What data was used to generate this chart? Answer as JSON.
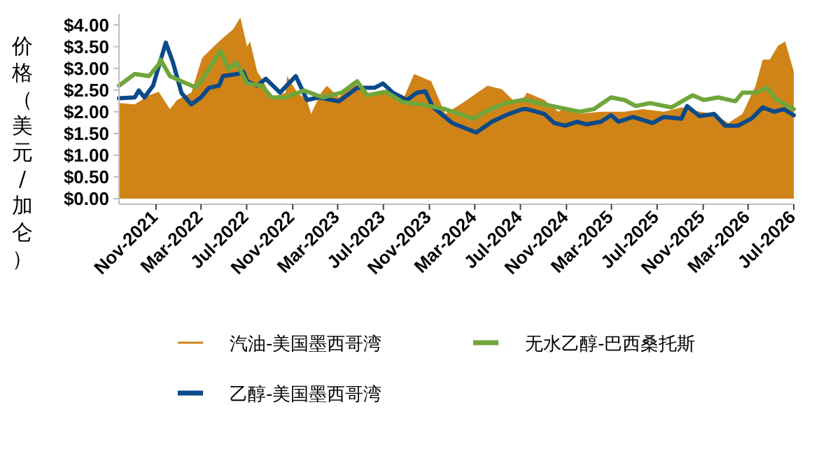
{
  "chart_data": {
    "type": "area",
    "ylabel": "价格（美元/加仑）",
    "legend": "bottom",
    "tick_labels": true,
    "xlim": [
      "2021-07-25",
      "2026-07"
    ],
    "ylim": [
      0,
      4.25
    ],
    "xticks": [
      {
        "value": "2021-11",
        "label": "Nov-2021"
      },
      {
        "value": "2022-03",
        "label": "Mar-2022"
      },
      {
        "value": "2022-07",
        "label": "Jul-2022"
      },
      {
        "value": "2022-11",
        "label": "Nov-2022"
      },
      {
        "value": "2023-03",
        "label": "Mar-2023"
      },
      {
        "value": "2023-07",
        "label": "Jul-2023"
      },
      {
        "value": "2023-11",
        "label": "Nov-2023"
      },
      {
        "value": "2024-03",
        "label": "Mar-2024"
      },
      {
        "value": "2024-07",
        "label": "Jul-2024"
      },
      {
        "value": "2024-11",
        "label": "Nov-2024"
      },
      {
        "value": "2025-03",
        "label": "Mar-2025"
      },
      {
        "value": "2025-07",
        "label": "Jul-2025"
      },
      {
        "value": "2025-11",
        "label": "Nov-2025"
      },
      {
        "value": "2026-03",
        "label": "Mar-2026"
      },
      {
        "value": "2026-07",
        "label": "Jul-2026"
      }
    ],
    "yticks": [
      {
        "value": 0,
        "label": "$0.00"
      },
      {
        "value": 0.5,
        "label": "$0.50"
      },
      {
        "value": 1,
        "label": "$1.00"
      },
      {
        "value": 1.5,
        "label": "$1.50"
      },
      {
        "value": 2,
        "label": "$2.00"
      },
      {
        "value": 2.5,
        "label": "$2.50"
      },
      {
        "value": 3,
        "label": "$3.00"
      },
      {
        "value": 3.5,
        "label": "$3.50"
      },
      {
        "value": 4,
        "label": "$4.00"
      }
    ],
    "series": [
      {
        "name": "汽油-美国墨西哥湾",
        "color": "#d08418",
        "x": [
          "2021-07-25",
          "2021-09-05",
          "2021-10-13",
          "2021-11-08",
          "2021-12-08",
          "2021-12-27",
          "2022-02-03",
          "2022-03-04",
          "2022-04-18",
          "2022-05-26",
          "2022-06-14",
          "2022-07-02",
          "2022-07-10",
          "2022-07-29",
          "2022-08-10",
          "2022-09-06",
          "2022-10-13",
          "2022-10-17",
          "2022-11-13",
          "2022-12-09",
          "2022-12-20",
          "2023-01-16",
          "2023-01-31",
          "2023-03-04",
          "2023-04-11",
          "2023-05-19",
          "2023-07-07",
          "2023-08-22",
          "2023-09-21",
          "2023-11-06",
          "2023-12-13",
          "2024-02-01",
          "2024-02-27",
          "2024-04-04",
          "2024-05-12",
          "2024-06-11",
          "2024-07-11",
          "2024-07-18",
          "2024-09-03",
          "2024-10-10",
          "2024-10-29",
          "2024-12-06",
          "2025-02-01",
          "2025-03-09",
          "2025-04-05",
          "2025-05-24",
          "2025-07-19",
          "2025-09-04",
          "2025-10-22",
          "2025-11-30",
          "2026-01-07",
          "2026-02-14",
          "2026-03-21",
          "2026-04-09",
          "2026-04-28",
          "2026-05-20",
          "2026-06-08",
          "2026-07-01"
        ],
        "values": [
          2.2,
          2.17,
          2.38,
          2.46,
          2.06,
          2.27,
          2.44,
          3.24,
          3.62,
          3.9,
          4.17,
          3.5,
          3.62,
          2.92,
          2.76,
          2.33,
          2.44,
          2.82,
          2.44,
          2.27,
          1.95,
          2.44,
          2.6,
          2.33,
          2.7,
          2.38,
          2.49,
          2.27,
          2.87,
          2.7,
          1.95,
          2.22,
          2.38,
          2.6,
          2.52,
          2.27,
          2.33,
          2.44,
          2.27,
          2.0,
          2.1,
          1.95,
          2.0,
          2.0,
          2.0,
          2.06,
          2.0,
          2.1,
          2.0,
          1.95,
          1.74,
          1.95,
          2.6,
          3.2,
          3.2,
          3.52,
          3.62,
          2.92
        ]
      },
      {
        "name": "乙醇-美国墨西哥湾",
        "type": "line",
        "color": "#0b4a8a",
        "x": [
          "2021-07-25",
          "2021-09-05",
          "2021-09-16",
          "2021-10-01",
          "2021-10-24",
          "2021-11-27",
          "2021-12-16",
          "2022-01-08",
          "2022-02-03",
          "2022-03-01",
          "2022-03-22",
          "2022-04-18",
          "2022-04-29",
          "2022-06-07",
          "2022-06-22",
          "2022-07-02",
          "2022-07-29",
          "2022-08-21",
          "2022-09-28",
          "2022-11-09",
          "2022-12-09",
          "2023-01-09",
          "2023-03-04",
          "2023-04-22",
          "2023-06-07",
          "2023-06-30",
          "2023-07-26",
          "2023-09-02",
          "2023-09-29",
          "2023-10-21",
          "2023-11-10",
          "2024-01-01",
          "2024-03-05",
          "2024-04-16",
          "2024-05-31",
          "2024-07-07",
          "2024-07-18",
          "2024-09-03",
          "2024-09-29",
          "2024-10-29",
          "2024-11-29",
          "2024-12-25",
          "2025-02-01",
          "2025-02-28",
          "2025-03-20",
          "2025-04-27",
          "2025-06-19",
          "2025-07-19",
          "2025-09-04",
          "2025-09-19",
          "2025-10-22",
          "2025-11-30",
          "2025-12-30",
          "2026-02-02",
          "2026-03-10",
          "2026-04-09",
          "2026-05-09",
          "2026-06-04",
          "2026-07-01"
        ],
        "values": [
          2.31,
          2.33,
          2.49,
          2.33,
          2.6,
          3.59,
          3.14,
          2.43,
          2.17,
          2.33,
          2.55,
          2.6,
          2.82,
          2.87,
          2.92,
          2.7,
          2.6,
          2.76,
          2.44,
          2.82,
          2.27,
          2.33,
          2.24,
          2.55,
          2.55,
          2.65,
          2.44,
          2.27,
          2.44,
          2.47,
          2.11,
          1.74,
          1.52,
          1.77,
          1.95,
          2.06,
          2.06,
          1.95,
          1.74,
          1.68,
          1.77,
          1.71,
          1.77,
          1.92,
          1.77,
          1.88,
          1.74,
          1.88,
          1.84,
          2.13,
          1.9,
          1.95,
          1.68,
          1.68,
          1.84,
          2.1,
          2.0,
          2.06,
          1.92
        ]
      },
      {
        "name": "无水乙醇-巴西桑托斯",
        "type": "line",
        "color": "#6fa63a",
        "x": [
          "2021-07-25",
          "2021-09-05",
          "2021-10-13",
          "2021-11-08",
          "2021-11-13",
          "2021-12-08",
          "2022-01-08",
          "2022-02-15",
          "2022-03-11",
          "2022-04-07",
          "2022-04-22",
          "2022-05-14",
          "2022-06-03",
          "2022-07-02",
          "2022-08-10",
          "2022-09-06",
          "2022-10-13",
          "2022-12-01",
          "2023-01-20",
          "2023-03-12",
          "2023-04-22",
          "2023-05-19",
          "2023-07-07",
          "2023-08-22",
          "2023-10-10",
          "2023-12-13",
          "2024-01-20",
          "2024-02-27",
          "2024-04-04",
          "2024-05-23",
          "2024-07-07",
          "2024-07-18",
          "2024-09-03",
          "2024-10-10",
          "2024-12-06",
          "2025-01-13",
          "2025-02-28",
          "2025-04-05",
          "2025-05-05",
          "2025-06-12",
          "2025-08-08",
          "2025-10-04",
          "2025-11-03",
          "2025-12-11",
          "2026-01-26",
          "2026-02-14",
          "2026-03-21",
          "2026-04-20",
          "2026-05-17",
          "2026-07-01"
        ],
        "values": [
          2.6,
          2.87,
          2.82,
          3.09,
          3.2,
          2.82,
          2.7,
          2.56,
          2.82,
          3.2,
          3.4,
          2.98,
          3.14,
          2.65,
          2.6,
          2.33,
          2.33,
          2.49,
          2.33,
          2.44,
          2.7,
          2.38,
          2.46,
          2.22,
          2.17,
          2.06,
          1.95,
          1.84,
          2.03,
          2.2,
          2.27,
          2.27,
          2.17,
          2.1,
          2.0,
          2.06,
          2.33,
          2.27,
          2.13,
          2.2,
          2.1,
          2.38,
          2.27,
          2.33,
          2.24,
          2.44,
          2.44,
          2.55,
          2.27,
          2.06
        ]
      }
    ]
  }
}
